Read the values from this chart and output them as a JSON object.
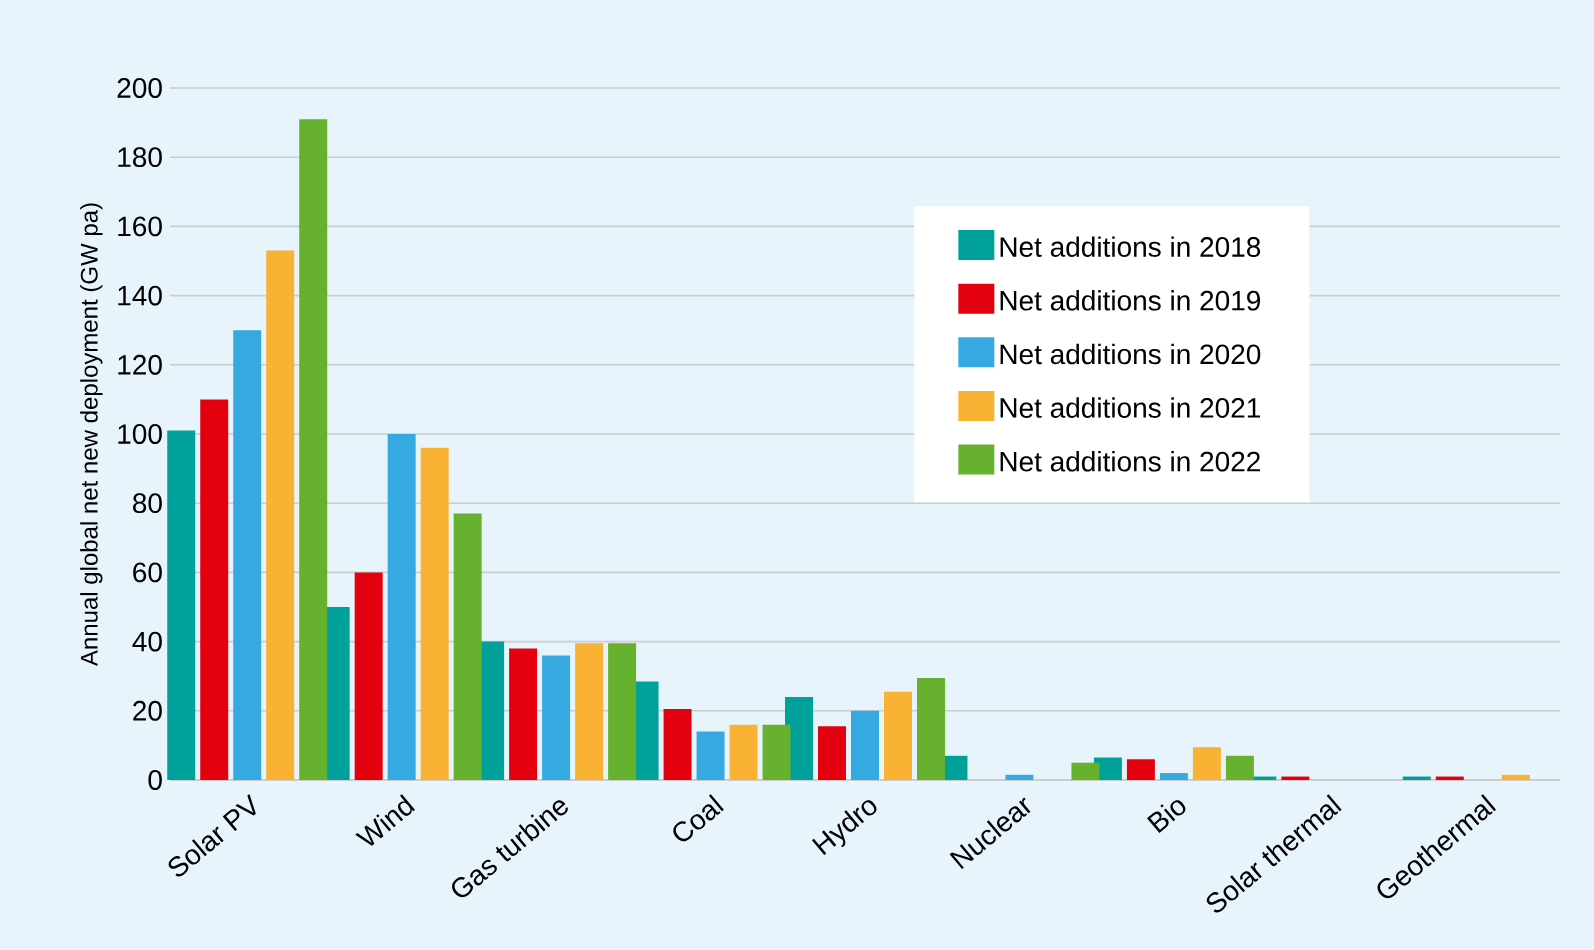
{
  "chart_data": {
    "type": "bar",
    "ylabel": "Annual global net new deployment (GW pa)",
    "categories": [
      "Solar PV",
      "Wind",
      "Gas turbine",
      "Coal",
      "Hydro",
      "Nuclear",
      "Bio",
      "Solar thermal",
      "Geothermal"
    ],
    "series": [
      {
        "name": "Net additions in 2018",
        "color": "#00a19a",
        "values": [
          101,
          50,
          40,
          28.5,
          24,
          7,
          6.5,
          1,
          1
        ]
      },
      {
        "name": "Net additions in 2019",
        "color": "#e3000f",
        "values": [
          110,
          60,
          38,
          20.5,
          15.5,
          0,
          6,
          1,
          1
        ]
      },
      {
        "name": "Net additions in 2020",
        "color": "#36a9e1",
        "values": [
          130,
          100,
          36,
          14,
          20,
          1.5,
          2,
          0,
          0
        ]
      },
      {
        "name": "Net additions in 2021",
        "color": "#f9b233",
        "values": [
          153,
          96,
          39.5,
          16,
          25.5,
          0,
          9.5,
          0,
          1.5
        ]
      },
      {
        "name": "Net additions in 2022",
        "color": "#66b22e",
        "values": [
          191,
          77,
          39.5,
          16,
          29.5,
          5,
          7,
          0,
          0
        ]
      }
    ],
    "ylim": [
      0,
      200
    ],
    "yticks": [
      0,
      20,
      40,
      60,
      80,
      100,
      120,
      140,
      160,
      180,
      200
    ],
    "grid": "y",
    "legend": "top right"
  }
}
